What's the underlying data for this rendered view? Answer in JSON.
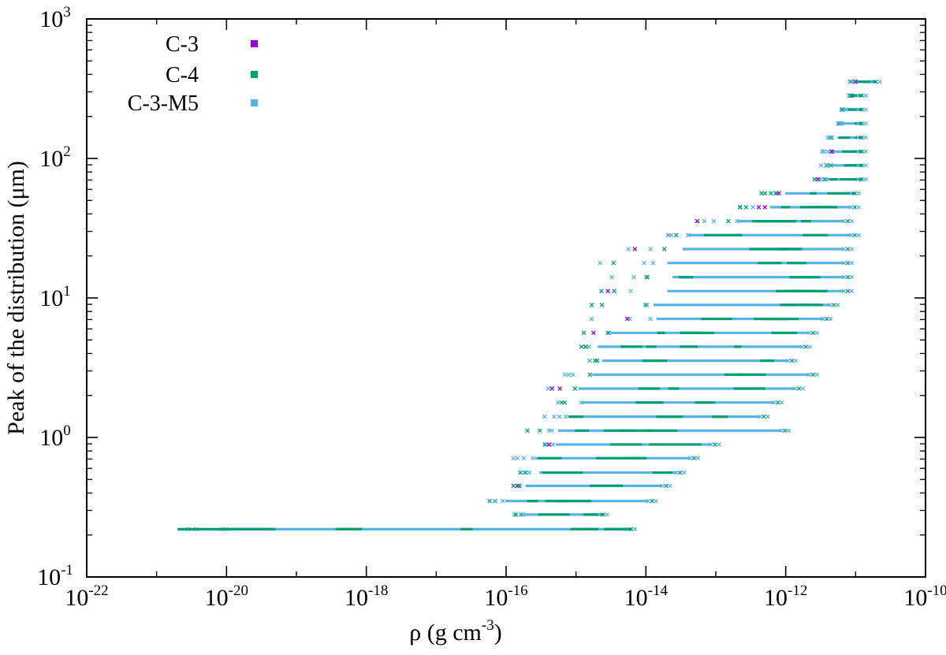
{
  "chart_data": {
    "type": "scatter",
    "title": "",
    "xscale": "log",
    "yscale": "log",
    "xlim_exp": [
      -22,
      -10
    ],
    "ylim_exp": [
      -1,
      3
    ],
    "x_ticks": [
      {
        "base": "10",
        "exp": "-22",
        "e": -22
      },
      {
        "base": "10",
        "exp": "-20",
        "e": -20
      },
      {
        "base": "10",
        "exp": "-18",
        "e": -18
      },
      {
        "base": "10",
        "exp": "-16",
        "e": -16
      },
      {
        "base": "10",
        "exp": "-14",
        "e": -14
      },
      {
        "base": "10",
        "exp": "-12",
        "e": -12
      },
      {
        "base": "10",
        "exp": "-10",
        "e": -10
      }
    ],
    "y_ticks": [
      {
        "base": "10",
        "exp": "-1",
        "e": -1
      },
      {
        "base": "10",
        "exp": "0",
        "e": 0
      },
      {
        "base": "10",
        "exp": "1",
        "e": 1
      },
      {
        "base": "10",
        "exp": "2",
        "e": 2
      },
      {
        "base": "10",
        "exp": "3",
        "e": 3
      }
    ],
    "xlabel": {
      "main": "ρ (g cm",
      "exp": "-3",
      "close": ")"
    },
    "ylabel": "Peak of the distribution (μm)",
    "legend_position": "top-left",
    "series": [
      {
        "name": "C-3",
        "color": "#9400d3"
      },
      {
        "name": "C-4",
        "color": "#009e73"
      },
      {
        "name": "C-3-M5",
        "color": "#56b4e9"
      }
    ],
    "bands": [
      {
        "y": 0.22,
        "log_rho": [
          -20.7,
          -14.2
        ]
      },
      {
        "y": 0.28,
        "log_rho": [
          -15.9,
          -14.6
        ]
      },
      {
        "y": 0.35,
        "log_rho": [
          -16.3,
          -13.9
        ]
      },
      {
        "y": 0.45,
        "log_rho": [
          -16.0,
          -13.7
        ]
      },
      {
        "y": 0.56,
        "log_rho": [
          -15.8,
          -13.5
        ]
      },
      {
        "y": 0.71,
        "log_rho": [
          -15.9,
          -13.3
        ]
      },
      {
        "y": 0.89,
        "log_rho": [
          -15.6,
          -13.0
        ]
      },
      {
        "y": 1.12,
        "log_rho": [
          -15.7,
          -12.0
        ]
      },
      {
        "y": 1.41,
        "log_rho": [
          -15.5,
          -12.3
        ]
      },
      {
        "y": 1.78,
        "log_rho": [
          -15.3,
          -12.1
        ]
      },
      {
        "y": 2.24,
        "log_rho": [
          -15.4,
          -11.8
        ]
      },
      {
        "y": 2.82,
        "log_rho": [
          -15.2,
          -11.6
        ]
      },
      {
        "y": 3.55,
        "log_rho": [
          -15.0,
          -11.9
        ]
      },
      {
        "y": 4.47,
        "log_rho": [
          -15.1,
          -11.7
        ]
      },
      {
        "y": 5.62,
        "log_rho": [
          -14.9,
          -11.6
        ]
      },
      {
        "y": 7.08,
        "log_rho": [
          -14.8,
          -11.4
        ]
      },
      {
        "y": 8.91,
        "log_rho": [
          -14.9,
          -11.3
        ]
      },
      {
        "y": 11.2,
        "log_rho": [
          -14.7,
          -11.1
        ]
      },
      {
        "y": 14.1,
        "log_rho": [
          -14.6,
          -11.1
        ]
      },
      {
        "y": 17.8,
        "log_rho": [
          -14.7,
          -11.1
        ]
      },
      {
        "y": 22.4,
        "log_rho": [
          -14.4,
          -11.1
        ]
      },
      {
        "y": 28.2,
        "log_rho": [
          -14.3,
          -11.0
        ]
      },
      {
        "y": 35.5,
        "log_rho": [
          -13.3,
          -11.1
        ]
      },
      {
        "y": 44.7,
        "log_rho": [
          -12.7,
          -11.0
        ]
      },
      {
        "y": 56.2,
        "log_rho": [
          -12.4,
          -11.0
        ]
      },
      {
        "y": 70.8,
        "log_rho": [
          -11.6,
          -10.9
        ]
      },
      {
        "y": 89.1,
        "log_rho": [
          -11.5,
          -10.9
        ]
      },
      {
        "y": 112,
        "log_rho": [
          -11.5,
          -10.9
        ]
      },
      {
        "y": 141,
        "log_rho": [
          -11.4,
          -10.9
        ]
      },
      {
        "y": 178,
        "log_rho": [
          -11.3,
          -10.9
        ]
      },
      {
        "y": 224,
        "log_rho": [
          -11.2,
          -10.9
        ]
      },
      {
        "y": 282,
        "log_rho": [
          -11.1,
          -10.9
        ]
      },
      {
        "y": 355,
        "log_rho": [
          -11.1,
          -10.7
        ]
      }
    ]
  }
}
